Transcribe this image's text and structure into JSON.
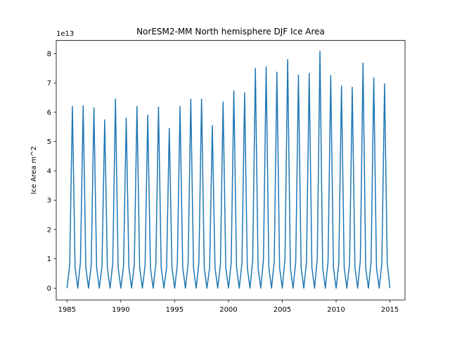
{
  "chart_data": {
    "type": "line",
    "title": "NorESM2-MM North hemisphere DJF Ice Area",
    "xlabel": "",
    "ylabel": "Ice Area m^2",
    "y_scale_label": "1e13",
    "xlim": [
      1984.0,
      2016.4
    ],
    "ylim": [
      -0.4,
      8.45
    ],
    "y_multiplier": 10000000000000.0,
    "xticks": [
      1985,
      1990,
      1995,
      2000,
      2005,
      2010,
      2015
    ],
    "yticks": [
      0,
      1,
      2,
      3,
      4,
      5,
      6,
      7,
      8
    ],
    "grid": false,
    "series_color": "#1f77b4",
    "series": [
      {
        "x": [
          1985.0,
          1985.25,
          1985.5,
          1985.75,
          1986.0,
          1986.25,
          1986.5,
          1986.75,
          1987.0,
          1987.25,
          1987.5,
          1987.75,
          1988.0,
          1988.25,
          1988.5,
          1988.75,
          1989.0,
          1989.25,
          1989.5,
          1989.75,
          1990.0,
          1990.25,
          1990.5,
          1990.75,
          1991.0,
          1991.25,
          1991.5,
          1991.75,
          1992.0,
          1992.25,
          1992.5,
          1992.75,
          1993.0,
          1993.25,
          1993.5,
          1993.75,
          1994.0,
          1994.25,
          1994.5,
          1994.75,
          1995.0,
          1995.25,
          1995.5,
          1995.75,
          1996.0,
          1996.25,
          1996.5,
          1996.75,
          1997.0,
          1997.25,
          1997.5,
          1997.75,
          1998.0,
          1998.25,
          1998.5,
          1998.75,
          1999.0,
          1999.25,
          1999.5,
          1999.75,
          2000.0,
          2000.25,
          2000.5,
          2000.75,
          2001.0,
          2001.25,
          2001.5,
          2001.75,
          2002.0,
          2002.25,
          2002.5,
          2002.75,
          2003.0,
          2003.25,
          2003.5,
          2003.75,
          2004.0,
          2004.25,
          2004.5,
          2004.75,
          2005.0,
          2005.25,
          2005.5,
          2005.75,
          2006.0,
          2006.25,
          2006.5,
          2006.75,
          2007.0,
          2007.25,
          2007.5,
          2007.75,
          2008.0,
          2008.25,
          2008.5,
          2008.75,
          2009.0,
          2009.25,
          2009.5,
          2009.75,
          2010.0,
          2010.25,
          2010.5,
          2010.75,
          2011.0,
          2011.25,
          2011.5,
          2011.75,
          2012.0,
          2012.25,
          2012.5,
          2012.75,
          2013.0,
          2013.25,
          2013.5,
          2013.75,
          2014.0,
          2014.25,
          2014.5,
          2014.75,
          2015.0
        ],
        "y": [
          0.0,
          0.8,
          6.2,
          0.7,
          0.0,
          0.9,
          6.22,
          0.7,
          0.0,
          0.8,
          6.15,
          0.7,
          0.0,
          0.75,
          5.74,
          0.7,
          0.0,
          0.85,
          6.45,
          0.7,
          0.0,
          0.75,
          5.8,
          0.7,
          0.0,
          0.8,
          6.2,
          0.7,
          0.0,
          0.75,
          5.9,
          0.7,
          0.0,
          0.8,
          6.18,
          0.7,
          0.0,
          0.7,
          5.45,
          0.7,
          0.0,
          0.8,
          6.2,
          0.7,
          0.0,
          0.85,
          6.45,
          0.7,
          0.0,
          0.85,
          6.45,
          0.7,
          0.0,
          0.7,
          5.55,
          0.7,
          0.0,
          0.8,
          6.35,
          0.7,
          0.0,
          0.85,
          6.73,
          0.7,
          0.0,
          0.85,
          6.67,
          0.7,
          0.0,
          0.95,
          7.5,
          0.7,
          0.0,
          0.95,
          7.55,
          0.7,
          0.0,
          0.9,
          7.37,
          0.7,
          0.0,
          1.0,
          7.8,
          0.7,
          0.0,
          0.9,
          7.27,
          0.7,
          0.0,
          0.9,
          7.33,
          0.7,
          0.0,
          1.0,
          8.08,
          0.7,
          0.0,
          0.9,
          7.25,
          0.7,
          0.0,
          0.85,
          6.9,
          0.7,
          0.0,
          0.85,
          6.85,
          0.7,
          0.0,
          0.95,
          7.68,
          0.7,
          0.0,
          0.9,
          7.17,
          0.7,
          0.0,
          0.85,
          6.97,
          0.85,
          0.0
        ]
      }
    ]
  }
}
